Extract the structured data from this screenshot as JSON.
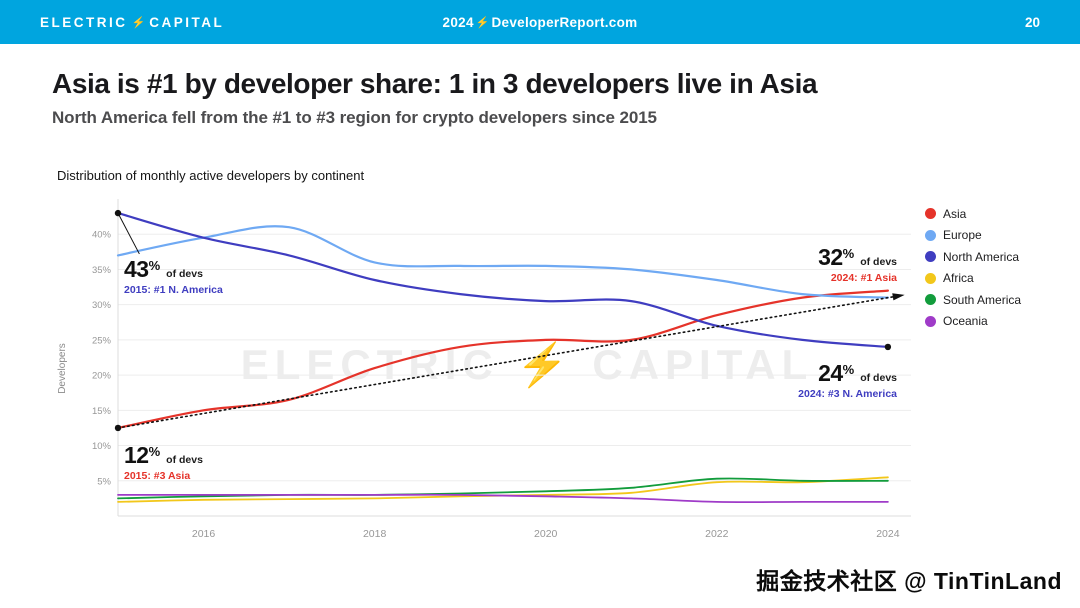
{
  "topbar": {
    "brand_left": "ELECTRIC",
    "brand_right": "CAPITAL",
    "bolt": "⚡",
    "center_prefix": "2024",
    "center_link": "DeveloperReport.com",
    "page_number": "20",
    "bg_color": "#00A5DF"
  },
  "headline": {
    "title": "Asia is #1 by developer share: 1 in 3 developers live in Asia",
    "subtitle": "North America fell from the #1 to #3 region for crypto developers since 2015"
  },
  "chart": {
    "title": "Distribution of monthly active developers by continent",
    "y_axis_label": "Developers",
    "watermark": "ELECTRIC ⚡ CAPITAL"
  },
  "annotations": {
    "na_2015": {
      "value": "43",
      "percent": "%",
      "label": "of devs",
      "detail": "2015: #1 N. America",
      "color": "#3F3DC0"
    },
    "asia_2015": {
      "value": "12",
      "percent": "%",
      "label": "of devs",
      "detail": "2015: #3 Asia",
      "color": "#E5332A"
    },
    "asia_2024": {
      "value": "32",
      "percent": "%",
      "label": "of devs",
      "detail": "2024: #1 Asia",
      "color": "#E5332A"
    },
    "na_2024": {
      "value": "24",
      "percent": "%",
      "label": "of devs",
      "detail": "2024: #3 N. America",
      "color": "#3F3DC0"
    }
  },
  "footer": {
    "credit": "掘金技术社区 @ TinTinLand"
  },
  "chart_data": {
    "type": "line",
    "title": "Distribution of monthly active developers by continent",
    "xlabel": "",
    "ylabel": "Developers",
    "x": [
      2015,
      2016,
      2017,
      2018,
      2019,
      2020,
      2021,
      2022,
      2023,
      2024
    ],
    "xticks": [
      2016,
      2018,
      2020,
      2022,
      2024
    ],
    "yticks": [
      5,
      10,
      15,
      20,
      25,
      30,
      35,
      40
    ],
    "ytick_suffix": "%",
    "xlim": [
      2015,
      2024.2
    ],
    "ylim": [
      0,
      45
    ],
    "grid": true,
    "legend_position": "right",
    "series": [
      {
        "name": "Asia",
        "color": "#E5332A",
        "values": [
          12.5,
          15.0,
          16.5,
          21.0,
          24.0,
          25.0,
          25.0,
          28.5,
          31.0,
          32.0
        ]
      },
      {
        "name": "Europe",
        "color": "#6FA9F3",
        "values": [
          37.0,
          39.5,
          41.0,
          36.0,
          35.5,
          35.5,
          35.0,
          33.5,
          31.5,
          31.0
        ]
      },
      {
        "name": "North America",
        "color": "#3F3DC0",
        "values": [
          43.0,
          39.5,
          37.0,
          33.5,
          31.5,
          30.5,
          30.5,
          27.0,
          25.0,
          24.0
        ]
      },
      {
        "name": "Africa",
        "color": "#F2C71B",
        "values": [
          2.0,
          2.3,
          2.4,
          2.5,
          2.8,
          3.0,
          3.3,
          4.8,
          4.8,
          5.5
        ]
      },
      {
        "name": "South America",
        "color": "#129C3C",
        "values": [
          2.5,
          2.8,
          3.0,
          3.0,
          3.2,
          3.5,
          4.0,
          5.3,
          5.0,
          5.0
        ]
      },
      {
        "name": "Oceania",
        "color": "#9F3BC8",
        "values": [
          3.0,
          3.0,
          3.0,
          3.0,
          3.0,
          2.8,
          2.5,
          2.0,
          2.0,
          2.0
        ]
      }
    ],
    "trend_arrow": {
      "from": [
        2015,
        12.5
      ],
      "to": [
        2024.15,
        31.3
      ],
      "style": "dotted",
      "color": "#111111"
    },
    "callout_line": {
      "from": [
        2015,
        43
      ],
      "to": [
        2015.25,
        37.2
      ]
    },
    "endpoint_dots": [
      [
        2015,
        43
      ],
      [
        2015,
        12.5
      ],
      [
        2024,
        24
      ]
    ]
  }
}
